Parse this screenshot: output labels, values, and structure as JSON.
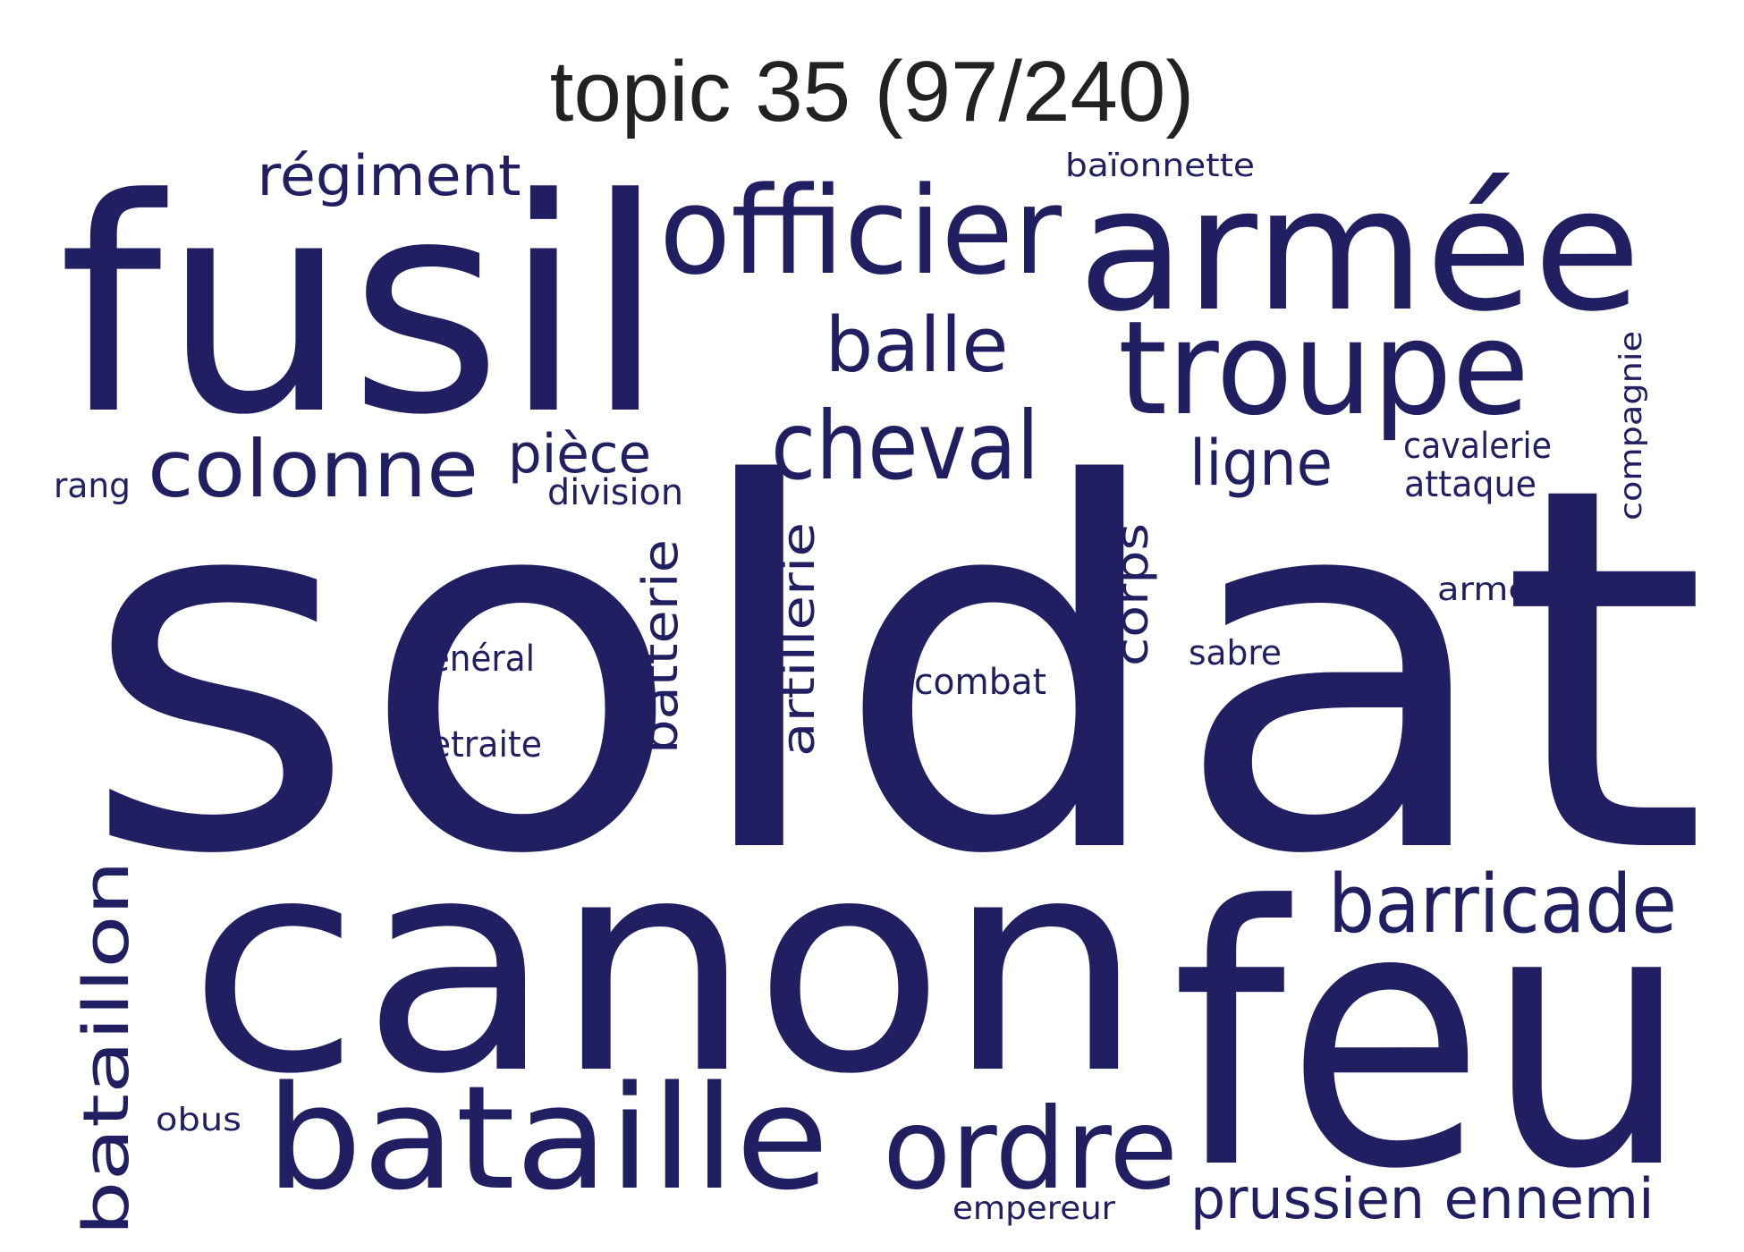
{
  "title": "topic 35 (97/240)",
  "word_color": "#211f62",
  "words": [
    {
      "text": "soldat"
    },
    {
      "text": "fusil"
    },
    {
      "text": "canon"
    },
    {
      "text": "feu"
    },
    {
      "text": "armée"
    },
    {
      "text": "officier"
    },
    {
      "text": "troupe"
    },
    {
      "text": "bataille"
    },
    {
      "text": "ordre"
    },
    {
      "text": "cheval"
    },
    {
      "text": "barricade"
    },
    {
      "text": "colonne"
    },
    {
      "text": "balle"
    },
    {
      "text": "régiment"
    },
    {
      "text": "bataillon"
    },
    {
      "text": "prussien"
    },
    {
      "text": "ennemi"
    },
    {
      "text": "ligne"
    },
    {
      "text": "pièce"
    },
    {
      "text": "artillerie"
    },
    {
      "text": "batterie"
    },
    {
      "text": "corps"
    },
    {
      "text": "baïonnette"
    },
    {
      "text": "cavalerie"
    },
    {
      "text": "attaque"
    },
    {
      "text": "compagnie"
    },
    {
      "text": "division"
    },
    {
      "text": "rang"
    },
    {
      "text": "général"
    },
    {
      "text": "retraite"
    },
    {
      "text": "combat"
    },
    {
      "text": "sabre"
    },
    {
      "text": "arme"
    },
    {
      "text": "obus"
    },
    {
      "text": "empereur"
    }
  ]
}
